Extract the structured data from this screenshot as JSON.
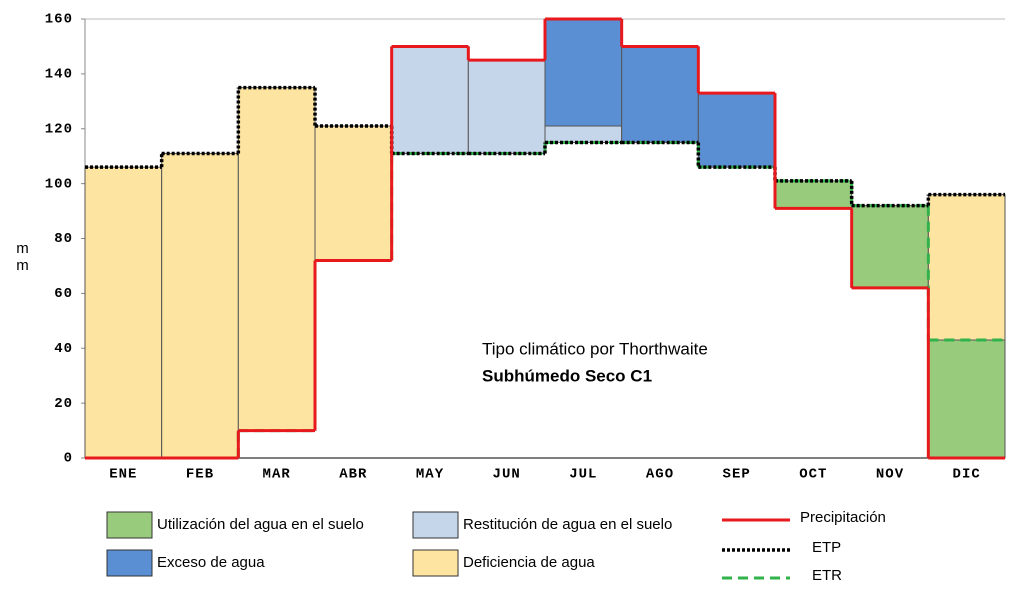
{
  "chart_data": {
    "type": "water-balance",
    "ylabel": "mm",
    "categories": [
      "ENE",
      "FEB",
      "MAR",
      "ABR",
      "MAY",
      "JUN",
      "JUL",
      "AGO",
      "SEP",
      "OCT",
      "NOV",
      "DIC"
    ],
    "ylim": [
      0,
      160
    ],
    "yticks": [
      0,
      20,
      40,
      60,
      80,
      100,
      120,
      140,
      160
    ],
    "series": [
      {
        "name": "Precipitación",
        "color": "#e8191c",
        "dash": "solid",
        "values": [
          0,
          0,
          10,
          72,
          150,
          145,
          160,
          150,
          133,
          91,
          62,
          0
        ]
      },
      {
        "name": "ETP",
        "color": "#000000",
        "dash": "dotted",
        "values": [
          106,
          111,
          135,
          121,
          111,
          111,
          115,
          115,
          106,
          101,
          92,
          96
        ]
      },
      {
        "name": "ETR",
        "color": "#2fb34a",
        "dash": "dashed",
        "values": [
          0,
          0,
          10,
          72,
          111,
          111,
          115,
          115,
          106,
          101,
          92,
          43
        ]
      }
    ],
    "soil_restitution": [
      null,
      null,
      null,
      null,
      39,
      34,
      6,
      null,
      null,
      null,
      null,
      null
    ],
    "areas": [
      {
        "name": "Utilización del agua en el suelo",
        "color": "#98cc7c"
      },
      {
        "name": "Restitución de agua en el suelo",
        "color": "#c5d5ea"
      },
      {
        "name": "Exceso de agua",
        "color": "#5b8fd4"
      },
      {
        "name": "Deficiencia de agua",
        "color": "#fde5a1"
      }
    ],
    "annotation": "Tipo climático por Thorthwaite",
    "annotation_bold": "Subhúmedo Seco C1"
  }
}
